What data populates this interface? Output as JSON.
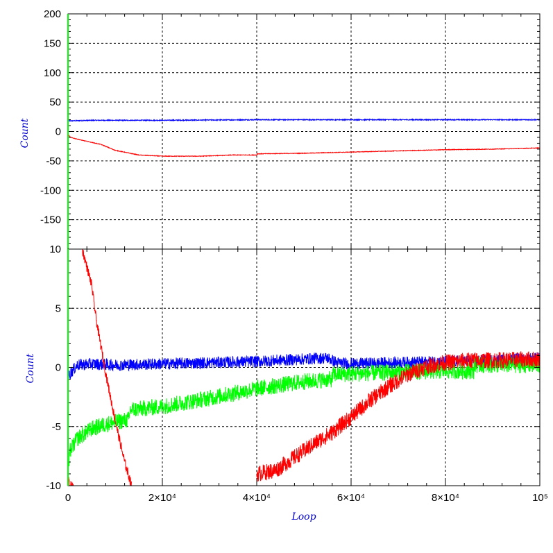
{
  "chart_data": [
    {
      "type": "line",
      "panel": "top",
      "ylabel": "Count",
      "xlim": [
        0,
        100000
      ],
      "ylim": [
        -200,
        200
      ],
      "y_ticks": [
        200,
        150,
        100,
        50,
        0,
        -50,
        -100,
        -150
      ],
      "grid": true,
      "series": [
        {
          "color": "#0000ff",
          "noise": 0.8,
          "x": [
            0,
            5000,
            20000,
            40000,
            60000,
            80000,
            100000
          ],
          "y": [
            18,
            19,
            19,
            20,
            20,
            20,
            20
          ]
        },
        {
          "color": "#ff0000",
          "noise": 0.5,
          "x": [
            0,
            500,
            3000,
            7000,
            10000,
            15000,
            20000,
            28000,
            35000,
            40000,
            40100,
            50000,
            60000,
            70000,
            80000,
            90000,
            100000
          ],
          "y": [
            -5,
            -10,
            -15,
            -22,
            -32,
            -40,
            -42,
            -42,
            -40,
            -40,
            -38,
            -37,
            -35,
            -33,
            -31,
            -30,
            -28
          ]
        }
      ]
    },
    {
      "type": "line",
      "panel": "bottom",
      "xlabel": "Loop",
      "ylabel": "Count",
      "xlim": [
        0,
        100000
      ],
      "ylim": [
        -10,
        10
      ],
      "y_ticks": [
        10,
        5,
        0,
        -5,
        -10
      ],
      "x_ticks": [
        "0",
        "2×10⁴",
        "4×10⁴",
        "6×10⁴",
        "8×10⁴",
        "10⁵"
      ],
      "x_tick_values": [
        0,
        20000,
        40000,
        60000,
        80000,
        100000
      ],
      "grid": true,
      "series": [
        {
          "color": "#0000ff",
          "noise": 0.5,
          "x": [
            0,
            500,
            2000,
            5000,
            10000,
            20000,
            30000,
            40000,
            50000,
            55000,
            57000,
            60000,
            70000,
            80000,
            90000,
            100000
          ],
          "y": [
            -0.8,
            -0.5,
            0.2,
            0.3,
            0.2,
            0.3,
            0.4,
            0.5,
            0.7,
            0.8,
            0.4,
            0.3,
            0.4,
            0.5,
            0.6,
            0.8
          ]
        },
        {
          "color": "#00ff00",
          "noise": 0.7,
          "x": [
            0,
            500,
            2000,
            5000,
            8000,
            13000,
            13100,
            20000,
            30000,
            40000,
            50000,
            56000,
            56100,
            70000,
            80000,
            86000,
            86100,
            100000
          ],
          "y": [
            -9,
            -7,
            -6,
            -5.2,
            -4.8,
            -4.4,
            -3.6,
            -3.3,
            -2.6,
            -1.8,
            -1.2,
            -1.0,
            -0.6,
            -0.4,
            -0.3,
            -0.3,
            0.2,
            0.2
          ]
        },
        {
          "color": "#ff0000",
          "noise": 0.4,
          "x": [
            0,
            300,
            600,
            900,
            1200
          ],
          "y": [
            -9.2,
            -10,
            -10,
            -10,
            -10
          ]
        },
        {
          "color": "#ff0000",
          "noise": 0.4,
          "x": [
            3000,
            5000,
            6000,
            8000,
            10000,
            12000,
            13500
          ],
          "y": [
            10,
            7,
            4,
            -0.5,
            -4.5,
            -8,
            -10
          ]
        },
        {
          "color": "#ff0000",
          "noise": 0.7,
          "x": [
            40000,
            44000,
            48000,
            52000,
            56000,
            60000,
            64000,
            68000,
            72000,
            76000,
            80000,
            85000,
            90000,
            100000
          ],
          "y": [
            -9,
            -8.7,
            -7.6,
            -6.5,
            -5.5,
            -4.2,
            -2.8,
            -1.6,
            -0.6,
            0.1,
            0.4,
            0.6,
            0.6,
            0.7
          ]
        }
      ]
    }
  ]
}
